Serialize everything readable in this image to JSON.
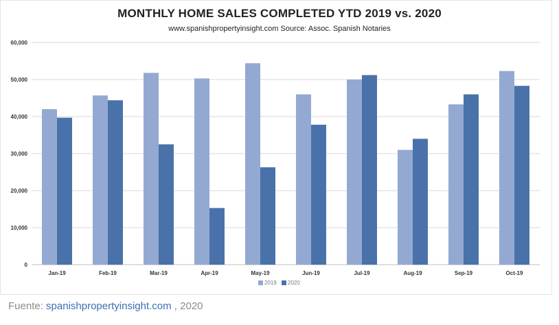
{
  "chart_data": {
    "type": "bar",
    "title": "MONTHLY HOME SALES COMPLETED YTD 2019 vs. 2020",
    "subtitle": "www.spanishpropertyinsight.com Source:  Assoc. Spanish Notaries",
    "categories": [
      "Jan-19",
      "Feb-19",
      "Mar-19",
      "Apr-19",
      "May-19",
      "Jun-19",
      "Jul-19",
      "Aug-19",
      "Sep-19",
      "Oct-19"
    ],
    "series": [
      {
        "name": "2019",
        "color": "#93a9d2",
        "values": [
          42000,
          45700,
          51800,
          50300,
          54400,
          46000,
          50000,
          31000,
          43300,
          52300
        ]
      },
      {
        "name": "2020",
        "color": "#4a72aa",
        "values": [
          39700,
          44400,
          32500,
          15300,
          26300,
          37800,
          51200,
          34000,
          46000,
          48300
        ]
      }
    ],
    "ylim": [
      0,
      60000
    ],
    "yticks": [
      "0",
      "10,000",
      "20,000",
      "30,000",
      "40,000",
      "50,000",
      "60,000"
    ],
    "grid": true,
    "legend_position": "bottom"
  },
  "caption": {
    "prefix": "Fuente: ",
    "link": "spanishpropertyinsight.com",
    "suffix": " , 2020"
  }
}
